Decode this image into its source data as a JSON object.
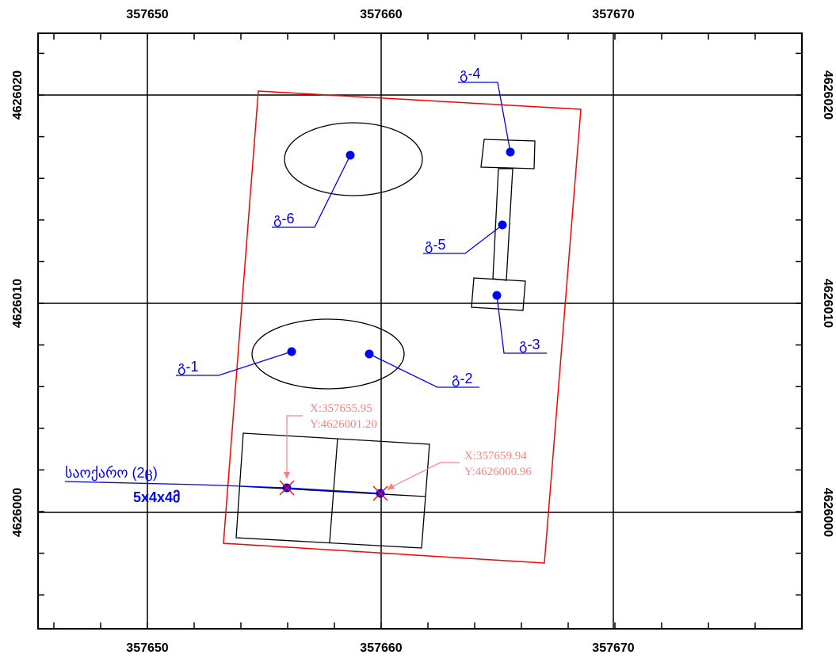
{
  "map": {
    "x_ticks": [
      "357650",
      "357660",
      "357670"
    ],
    "y_ticks": [
      "4626020",
      "4626010",
      "4626000"
    ],
    "sources": [
      "გ-1",
      "გ-2",
      "გ-3",
      "გ-4",
      "გ-5",
      "გ-6"
    ],
    "storage_label_line1": "საოქარო (2ც)",
    "storage_label_line2": "5x4x4მ",
    "coord_a_x": "X:357655.95",
    "coord_a_y": "Y:4626001.20",
    "coord_b_x": "X:357659.94",
    "coord_b_y": "Y:4626000.96",
    "colors": {
      "grid": "#000000",
      "boundary": "#ff0000",
      "source": "#0000ff",
      "coord_note": "#ff7f7f"
    }
  }
}
